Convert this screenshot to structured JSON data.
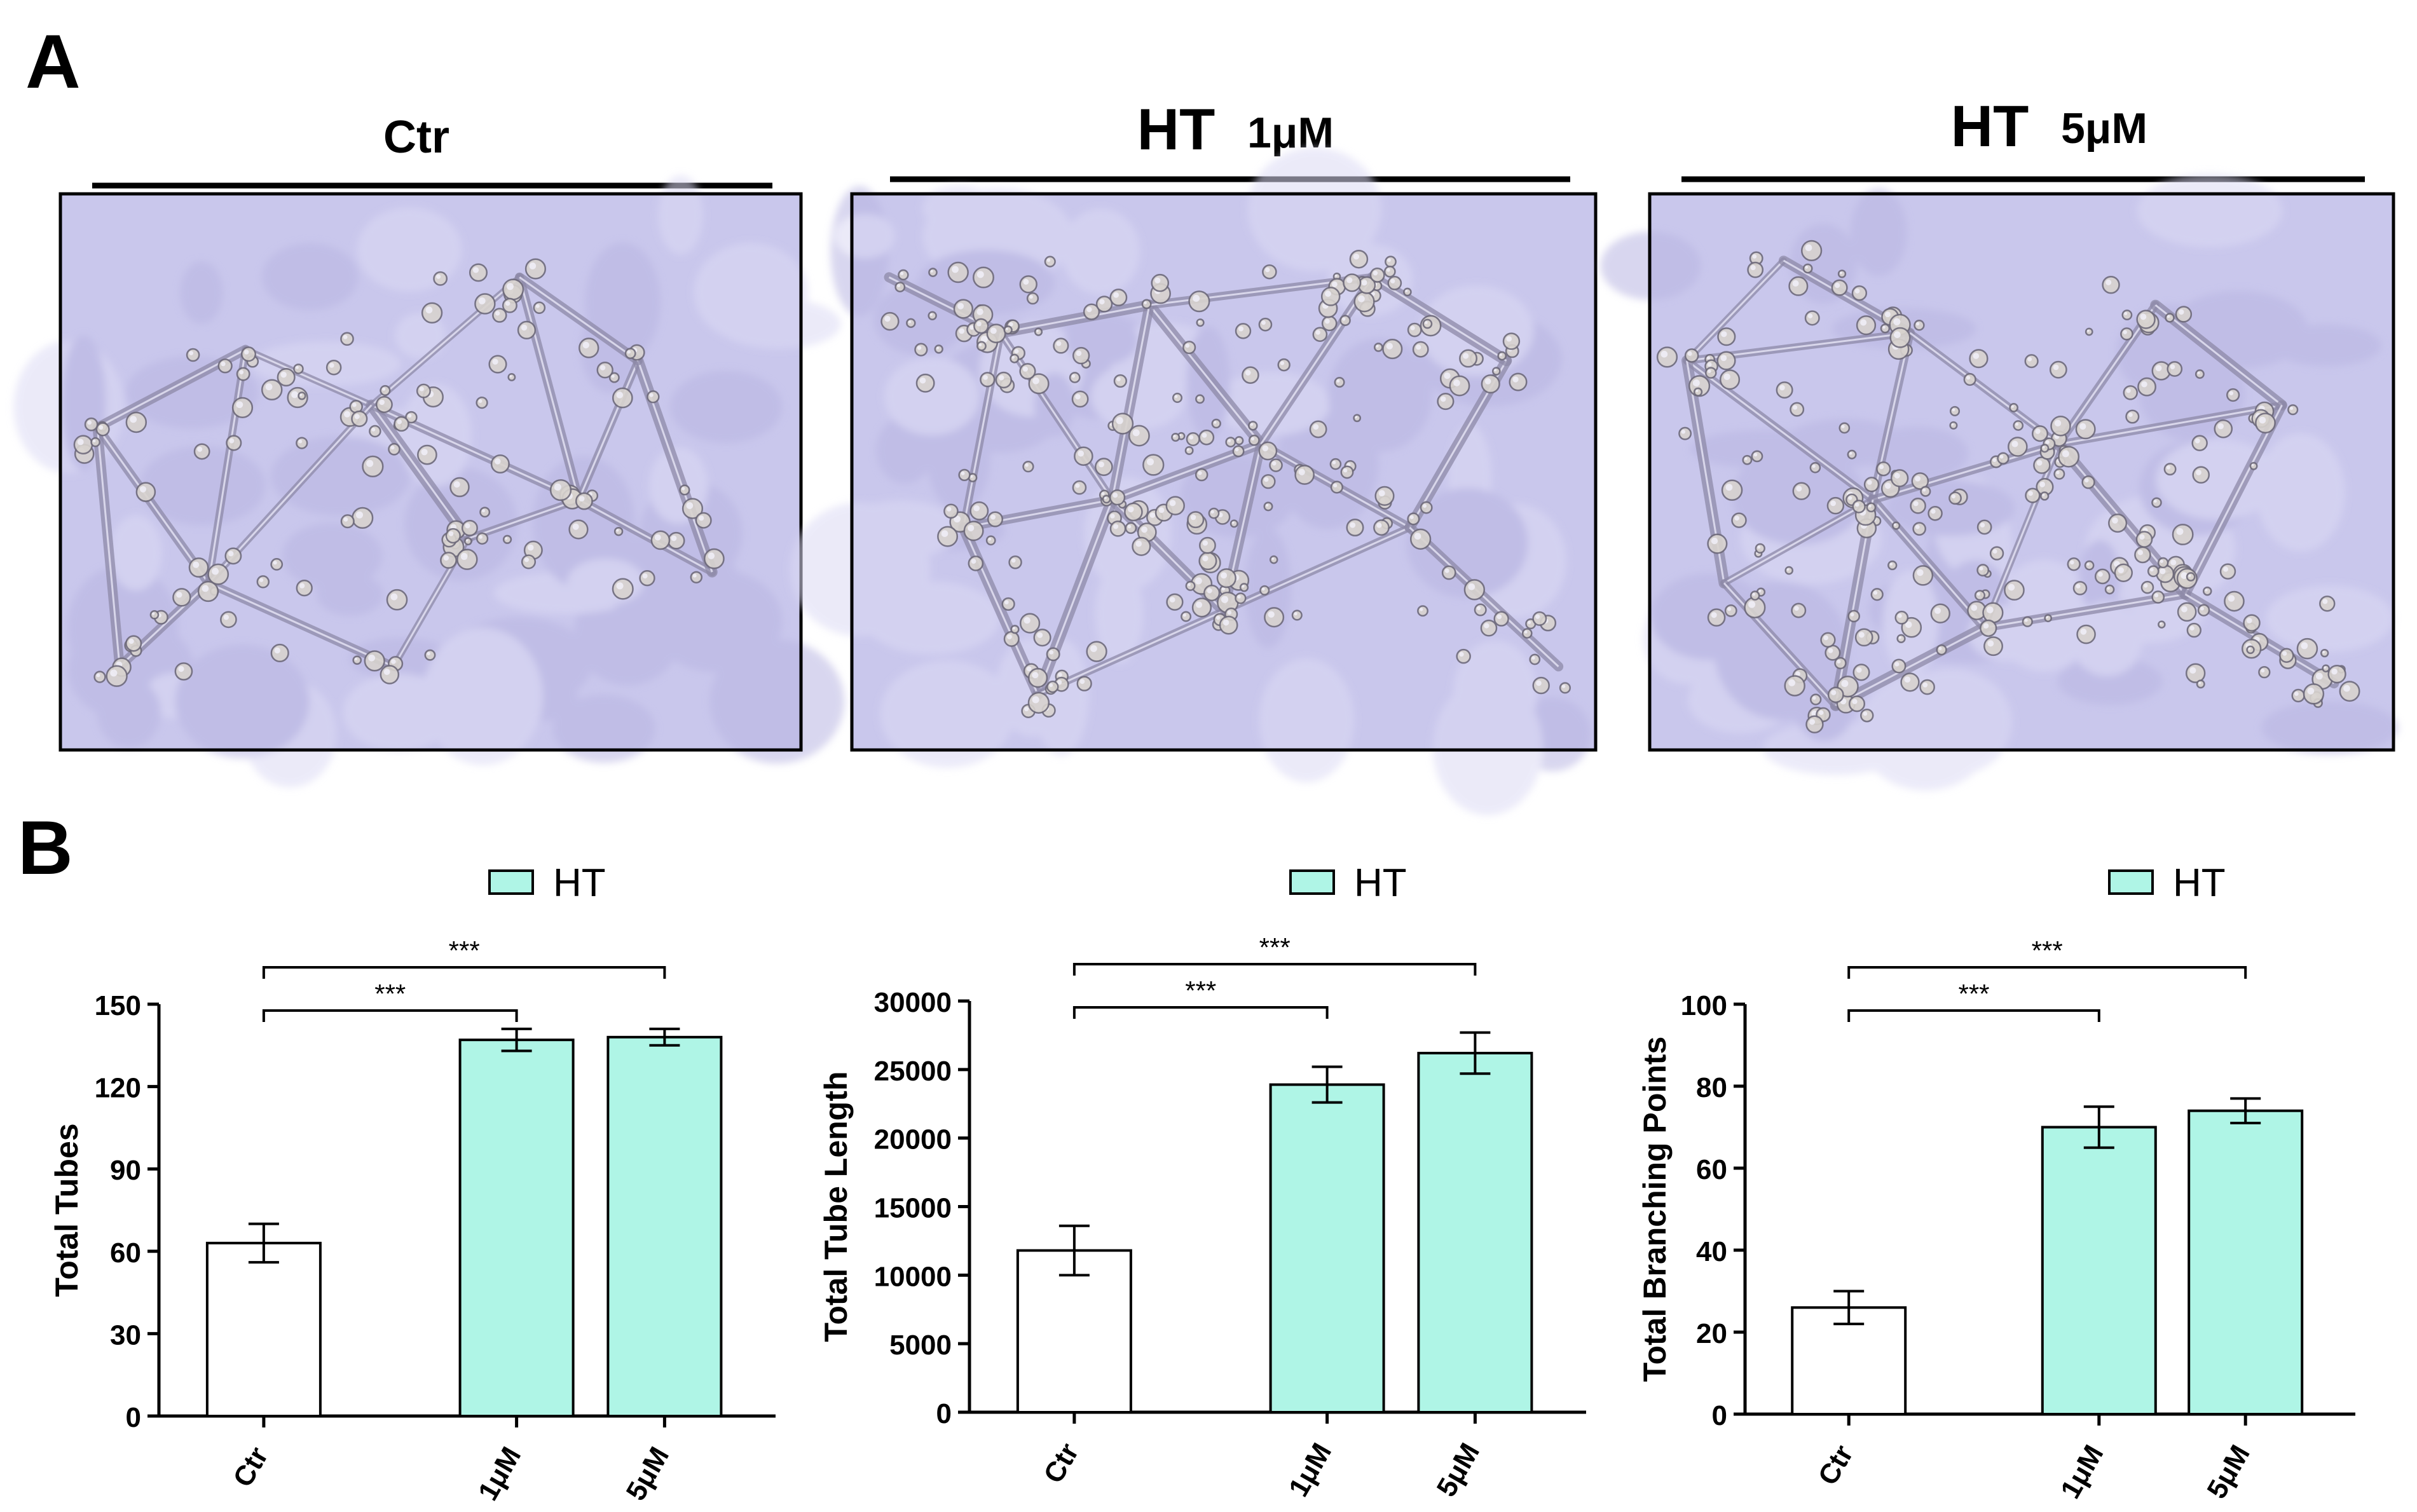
{
  "panel_labels": {
    "a": "A",
    "b": "B"
  },
  "panel_a": {
    "images": [
      {
        "title_main": "Ctr",
        "title_sub": ""
      },
      {
        "title_main": "HT",
        "title_sub": "1μM"
      },
      {
        "title_main": "HT",
        "title_sub": "5μM"
      }
    ],
    "image_tint": "#c9c7ec"
  },
  "colors": {
    "ht_fill": "#aff5e6",
    "ctr_fill": "#ffffff",
    "stroke": "#000000"
  },
  "chart_data": [
    {
      "type": "bar",
      "legend": "HT",
      "ylabel": "Total Tubes",
      "categories": [
        "Ctr",
        "1μM",
        "5μM"
      ],
      "values": [
        63,
        137,
        138
      ],
      "errors": [
        7,
        4,
        3
      ],
      "ylim": [
        0,
        150
      ],
      "yticks": [
        "0",
        "30",
        "60",
        "90",
        "120",
        "150"
      ],
      "significance": [
        {
          "from": 0,
          "to": 1,
          "label": "***"
        },
        {
          "from": 0,
          "to": 2,
          "label": "***"
        }
      ]
    },
    {
      "type": "bar",
      "legend": "HT",
      "ylabel": "Total Tube Length",
      "categories": [
        "Ctr",
        "1μM",
        "5μM"
      ],
      "values": [
        11800,
        23900,
        26200
      ],
      "errors": [
        1800,
        1300,
        1500
      ],
      "ylim": [
        0,
        30000
      ],
      "yticks": [
        "0",
        "5000",
        "10000",
        "15000",
        "20000",
        "25000",
        "30000"
      ],
      "significance": [
        {
          "from": 0,
          "to": 1,
          "label": "***"
        },
        {
          "from": 0,
          "to": 2,
          "label": "***"
        }
      ]
    },
    {
      "type": "bar",
      "legend": "HT",
      "ylabel": "Total Branching Points",
      "categories": [
        "Ctr",
        "1μM",
        "5μM"
      ],
      "values": [
        26,
        70,
        74
      ],
      "errors": [
        4,
        5,
        3
      ],
      "ylim": [
        0,
        100
      ],
      "yticks": [
        "0",
        "20",
        "40",
        "60",
        "80",
        "100"
      ],
      "significance": [
        {
          "from": 0,
          "to": 1,
          "label": "***"
        },
        {
          "from": 0,
          "to": 2,
          "label": "***"
        }
      ]
    }
  ]
}
